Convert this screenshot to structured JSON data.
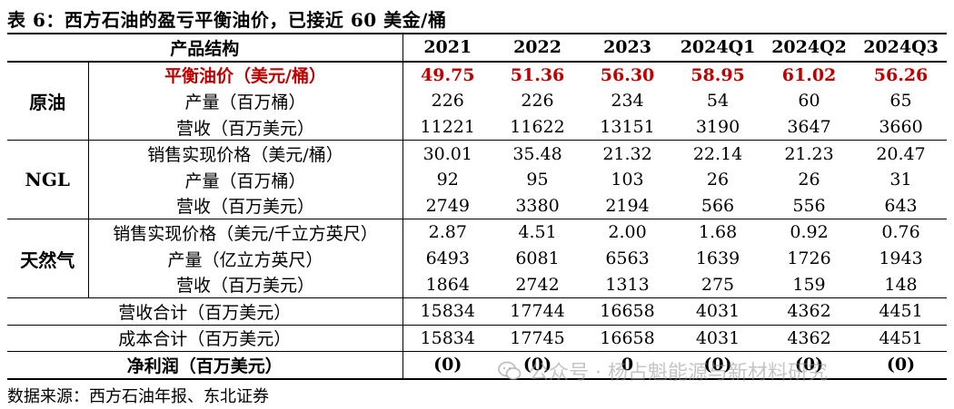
{
  "title": "表 6：西方石油的盈亏平衡油价，已接近 60 美金/桶",
  "table": {
    "header": {
      "structure_label": "产品结构",
      "years": [
        "2021",
        "2022",
        "2023",
        "2024Q1",
        "2024Q2",
        "2024Q3"
      ]
    },
    "groups": [
      {
        "name": "原油",
        "rows": [
          {
            "label": "平衡油价（美元/桶）",
            "values": [
              "49.75",
              "51.36",
              "56.30",
              "58.95",
              "61.02",
              "56.26"
            ],
            "highlight": true
          },
          {
            "label": "产量（百万桶）",
            "values": [
              "226",
              "226",
              "234",
              "54",
              "60",
              "65"
            ]
          },
          {
            "label": "营收（百万美元）",
            "values": [
              "11221",
              "11622",
              "13151",
              "3190",
              "3647",
              "3660"
            ]
          }
        ]
      },
      {
        "name": "NGL",
        "rows": [
          {
            "label": "销售实现价格（美元/桶）",
            "values": [
              "30.01",
              "35.48",
              "21.32",
              "22.14",
              "21.23",
              "20.47"
            ]
          },
          {
            "label": "产量（百万桶）",
            "values": [
              "92",
              "95",
              "103",
              "26",
              "26",
              "31"
            ]
          },
          {
            "label": "营收（百万美元）",
            "values": [
              "2749",
              "3380",
              "2194",
              "566",
              "556",
              "643"
            ]
          }
        ]
      },
      {
        "name": "天然气",
        "rows": [
          {
            "label": "销售实现价格（美元/千立方英尺）",
            "values": [
              "2.87",
              "4.51",
              "2.00",
              "1.68",
              "0.92",
              "0.76"
            ]
          },
          {
            "label": "产量（亿立方英尺）",
            "values": [
              "6493",
              "6081",
              "6563",
              "1639",
              "1726",
              "1943"
            ]
          },
          {
            "label": "营收（百万美元）",
            "values": [
              "1864",
              "2742",
              "1313",
              "275",
              "159",
              "148"
            ]
          }
        ]
      }
    ],
    "totals": [
      {
        "label": "营收合计（百万美元）",
        "values": [
          "15834",
          "17744",
          "16658",
          "4031",
          "4362",
          "4451"
        ]
      },
      {
        "label": "成本合计（百万美元）",
        "values": [
          "15834",
          "17745",
          "16658",
          "4031",
          "4362",
          "4451"
        ]
      },
      {
        "label": "净利润（百万美元）",
        "values": [
          "(0)",
          "(0)",
          "0",
          "(0)",
          "(0)",
          "(0)"
        ],
        "bold": true
      }
    ]
  },
  "source": "数据来源：西方石油年报、东北证券",
  "watermark": {
    "text": "公众号 · 杨占魁能源与新材料研究",
    "icon": "wechat-icon"
  },
  "colors": {
    "highlight": "#c00000"
  }
}
